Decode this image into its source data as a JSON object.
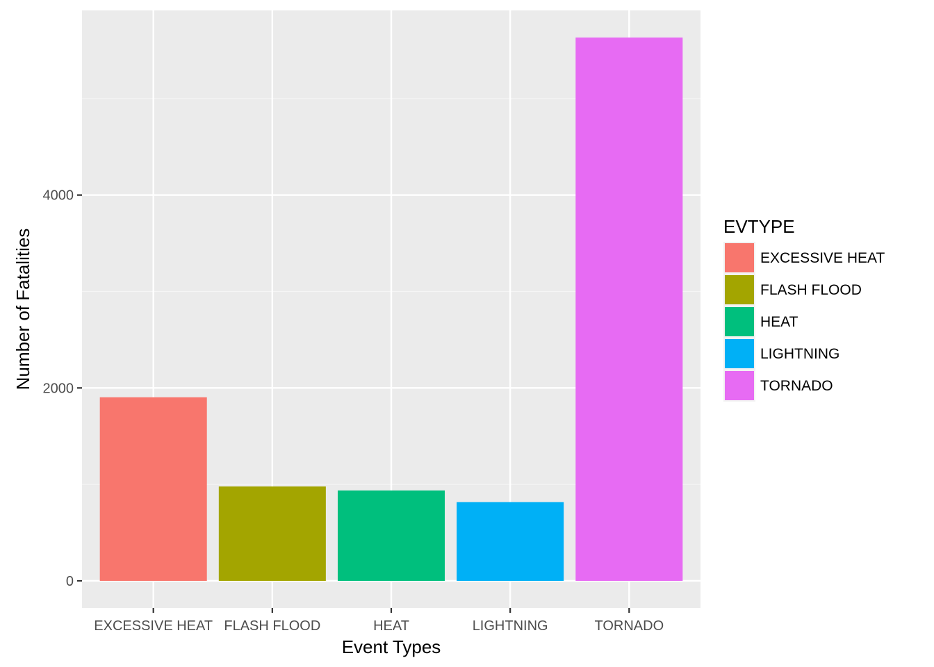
{
  "chart_data": {
    "type": "bar",
    "categories": [
      "EXCESSIVE HEAT",
      "FLASH FLOOD",
      "HEAT",
      "LIGHTNING",
      "TORNADO"
    ],
    "values": [
      1903,
      978,
      937,
      816,
      5633
    ],
    "colors": [
      "#F8766D",
      "#A3A500",
      "#00BF7D",
      "#00B0F6",
      "#E76BF3"
    ],
    "xlabel": "Event Types",
    "ylabel": "Number of Fatalities",
    "yticks": [
      0,
      2000,
      4000
    ],
    "ylim": [
      -281,
      5914
    ],
    "grid": true,
    "legend": {
      "title": "EVTYPE",
      "placement": "right",
      "items": [
        "EXCESSIVE HEAT",
        "FLASH FLOOD",
        "HEAT",
        "LIGHTNING",
        "TORNADO"
      ]
    }
  }
}
